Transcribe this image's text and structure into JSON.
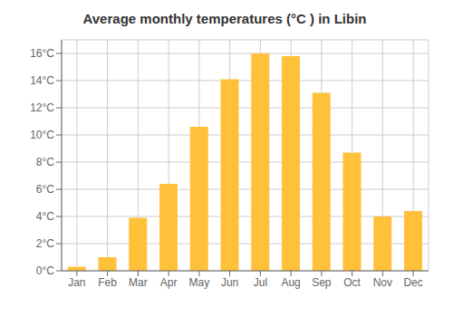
{
  "chart_data": {
    "type": "bar",
    "title": "Average monthly temperatures (°C ) in Libin",
    "categories": [
      "Jan",
      "Feb",
      "Mar",
      "Apr",
      "May",
      "Jun",
      "Jul",
      "Aug",
      "Sep",
      "Oct",
      "Nov",
      "Dec"
    ],
    "values": [
      0.3,
      1.0,
      3.9,
      6.4,
      10.6,
      14.1,
      16.0,
      15.8,
      13.1,
      8.7,
      4.0,
      4.4
    ],
    "color": "#FFC03A",
    "ylim": [
      0,
      17
    ],
    "yticks": [
      {
        "value": 0,
        "label": "0°C"
      },
      {
        "value": 2,
        "label": "2°C"
      },
      {
        "value": 4,
        "label": "4°C"
      },
      {
        "value": 6,
        "label": "6°C"
      },
      {
        "value": 8,
        "label": "8°C"
      },
      {
        "value": 10,
        "label": "10°C"
      },
      {
        "value": 12,
        "label": "12°C"
      },
      {
        "value": 14,
        "label": "14°C"
      },
      {
        "value": 16,
        "label": "16°C"
      }
    ],
    "grid": true
  }
}
